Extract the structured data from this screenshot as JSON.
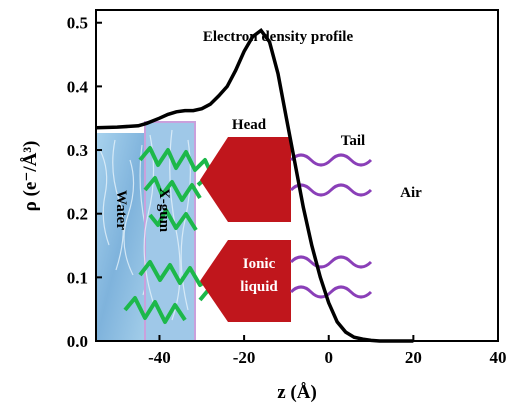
{
  "chart_data": {
    "type": "line",
    "title": "Electron density profile",
    "xlabel": "z (Å)",
    "ylabel": "ρ (e⁻/Å³)",
    "xlim": [
      -55,
      40
    ],
    "ylim": [
      0.0,
      0.52
    ],
    "xticks": [
      "-40",
      "-20",
      "0",
      "20",
      "40"
    ],
    "yticks": [
      "0.0",
      "0.1",
      "0.2",
      "0.3",
      "0.4",
      "0.5"
    ],
    "grid": false,
    "series": [
      {
        "color": "#000000",
        "x": [
          -55,
          -50,
          -45,
          -43,
          -40,
          -38,
          -36,
          -34,
          -32,
          -30,
          -28,
          -26,
          -24,
          -22,
          -20,
          -18,
          -16,
          -14,
          -12,
          -10,
          -8,
          -6,
          -4,
          -2,
          0,
          2,
          4,
          6,
          8,
          10,
          12,
          14,
          16,
          18,
          20
        ],
        "y": [
          0.335,
          0.336,
          0.338,
          0.342,
          0.35,
          0.356,
          0.36,
          0.362,
          0.362,
          0.365,
          0.372,
          0.385,
          0.4,
          0.425,
          0.455,
          0.478,
          0.488,
          0.47,
          0.42,
          0.35,
          0.28,
          0.21,
          0.15,
          0.1,
          0.06,
          0.03,
          0.014,
          0.006,
          0.003,
          0.001,
          0.0,
          0.0,
          0.0,
          0.0,
          0.0
        ]
      }
    ],
    "annotations": {
      "water": "Water",
      "xgum": "X-gum",
      "head": "Head",
      "tail": "Tail",
      "air": "Air",
      "ionic": "Ionic",
      "liquid": "liquid"
    }
  },
  "colors": {
    "water_fill": "#8fbfe0",
    "water_dark": "#5a8fbf",
    "xgum_border": "#c9a0dc",
    "gum_green": "#1db84a",
    "head_red": "#c0161c",
    "tail_purple": "#8a3fb8"
  }
}
